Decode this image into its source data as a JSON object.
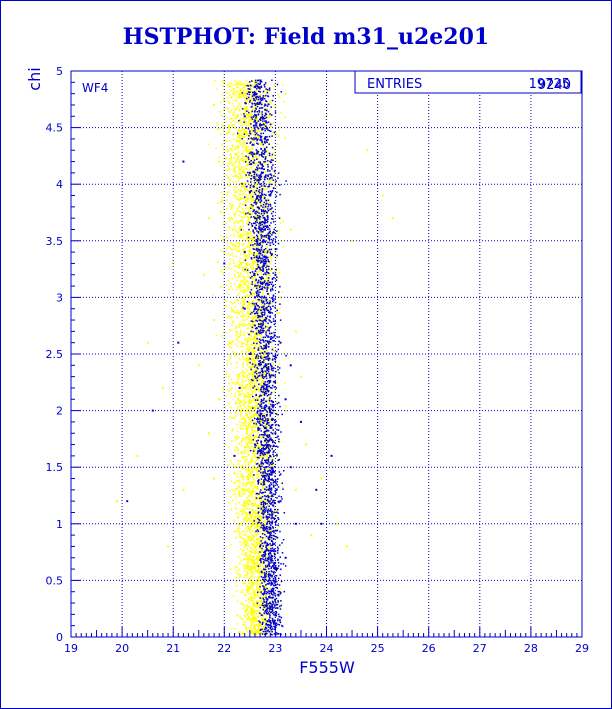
{
  "chart_data": {
    "type": "scatter",
    "title": "HSTPHOT: Field m31_u2e201",
    "xlabel": "F555W",
    "ylabel": "chi",
    "xlim": [
      19,
      29
    ],
    "ylim": [
      0,
      5
    ],
    "x_ticks": [
      "19",
      "20",
      "21",
      "22",
      "23",
      "24",
      "25",
      "26",
      "27",
      "28",
      "29"
    ],
    "y_ticks": [
      "0",
      "0.5",
      "1",
      "1.5",
      "2",
      "2.5",
      "3",
      "3.5",
      "4",
      "4.5",
      "5"
    ],
    "grid": true,
    "annotation": "WF4",
    "stats_box": {
      "label": "ENTRIES",
      "values": [
        "19725",
        "9240"
      ]
    },
    "colors": {
      "frame": "#0000cc",
      "series_a": "#ffff00",
      "series_b": "#0000cc"
    },
    "series": [
      {
        "color": "#ffff00",
        "points": [
          [
            22.0,
            4.9
          ],
          [
            22.3,
            4.8
          ],
          [
            22.6,
            4.9
          ],
          [
            21.8,
            4.7
          ],
          [
            22.9,
            4.6
          ],
          [
            23.2,
            4.8
          ],
          [
            22.1,
            4.5
          ],
          [
            22.5,
            4.4
          ],
          [
            22.8,
            4.3
          ],
          [
            21.9,
            4.2
          ],
          [
            22.4,
            4.1
          ],
          [
            23.0,
            4.0
          ],
          [
            22.2,
            3.9
          ],
          [
            22.7,
            3.8
          ],
          [
            21.7,
            3.7
          ],
          [
            23.3,
            3.6
          ],
          [
            22.0,
            3.5
          ],
          [
            22.5,
            3.4
          ],
          [
            22.9,
            3.3
          ],
          [
            21.6,
            3.2
          ],
          [
            22.3,
            3.1
          ],
          [
            23.1,
            3.0
          ],
          [
            22.6,
            2.9
          ],
          [
            21.8,
            2.8
          ],
          [
            23.4,
            2.7
          ],
          [
            22.1,
            2.6
          ],
          [
            22.8,
            2.5
          ],
          [
            21.5,
            2.4
          ],
          [
            23.5,
            2.3
          ],
          [
            22.4,
            2.2
          ],
          [
            21.9,
            2.1
          ],
          [
            23.2,
            2.0
          ],
          [
            22.7,
            1.9
          ],
          [
            21.7,
            1.8
          ],
          [
            23.6,
            1.7
          ],
          [
            22.2,
            1.6
          ],
          [
            22.9,
            1.5
          ],
          [
            21.8,
            1.4
          ],
          [
            23.4,
            1.3
          ],
          [
            22.5,
            1.2
          ],
          [
            23.0,
            1.1
          ],
          [
            22.3,
            1.0
          ],
          [
            23.7,
            0.9
          ],
          [
            22.6,
            0.8
          ],
          [
            22.0,
            0.7
          ],
          [
            24.8,
            4.3
          ],
          [
            25.1,
            3.9
          ],
          [
            24.5,
            3.5
          ],
          [
            25.3,
            3.7
          ],
          [
            24.0,
            4.6
          ],
          [
            20.5,
            2.6
          ],
          [
            20.3,
            1.6
          ],
          [
            21.2,
            1.3
          ],
          [
            21.0,
            3.3
          ],
          [
            20.8,
            2.2
          ],
          [
            19.9,
            1.2
          ],
          [
            20.9,
            0.8
          ],
          [
            24.2,
            1.0
          ],
          [
            24.4,
            0.8
          ],
          [
            23.9,
            1.4
          ]
        ]
      },
      {
        "color": "#0000cc",
        "points": [
          [
            22.6,
            4.8
          ],
          [
            22.4,
            4.6
          ],
          [
            22.8,
            4.4
          ],
          [
            22.5,
            4.1
          ],
          [
            22.9,
            3.9
          ],
          [
            22.7,
            3.6
          ],
          [
            22.4,
            3.4
          ],
          [
            23.0,
            3.2
          ],
          [
            22.6,
            3.0
          ],
          [
            22.8,
            2.8
          ],
          [
            23.1,
            2.6
          ],
          [
            22.5,
            2.5
          ],
          [
            22.9,
            2.3
          ],
          [
            23.2,
            2.1
          ],
          [
            22.7,
            2.0
          ],
          [
            23.0,
            1.8
          ],
          [
            22.6,
            1.7
          ],
          [
            23.3,
            1.5
          ],
          [
            22.8,
            1.4
          ],
          [
            23.1,
            1.2
          ],
          [
            22.5,
            1.1
          ],
          [
            23.4,
            1.0
          ],
          [
            22.9,
            0.9
          ],
          [
            23.2,
            0.7
          ],
          [
            22.4,
            2.9
          ],
          [
            23.3,
            2.4
          ],
          [
            22.6,
            3.7
          ],
          [
            22.3,
            2.2
          ],
          [
            23.5,
            1.9
          ],
          [
            22.2,
            1.6
          ],
          [
            21.2,
            4.2
          ],
          [
            20.6,
            2.0
          ],
          [
            20.1,
            1.2
          ],
          [
            21.1,
            2.6
          ],
          [
            23.8,
            1.3
          ],
          [
            24.1,
            1.6
          ],
          [
            23.9,
            1.0
          ],
          [
            22.0,
            3.3
          ],
          [
            23.0,
            0.6
          ],
          [
            22.7,
            0.8
          ]
        ]
      }
    ]
  }
}
